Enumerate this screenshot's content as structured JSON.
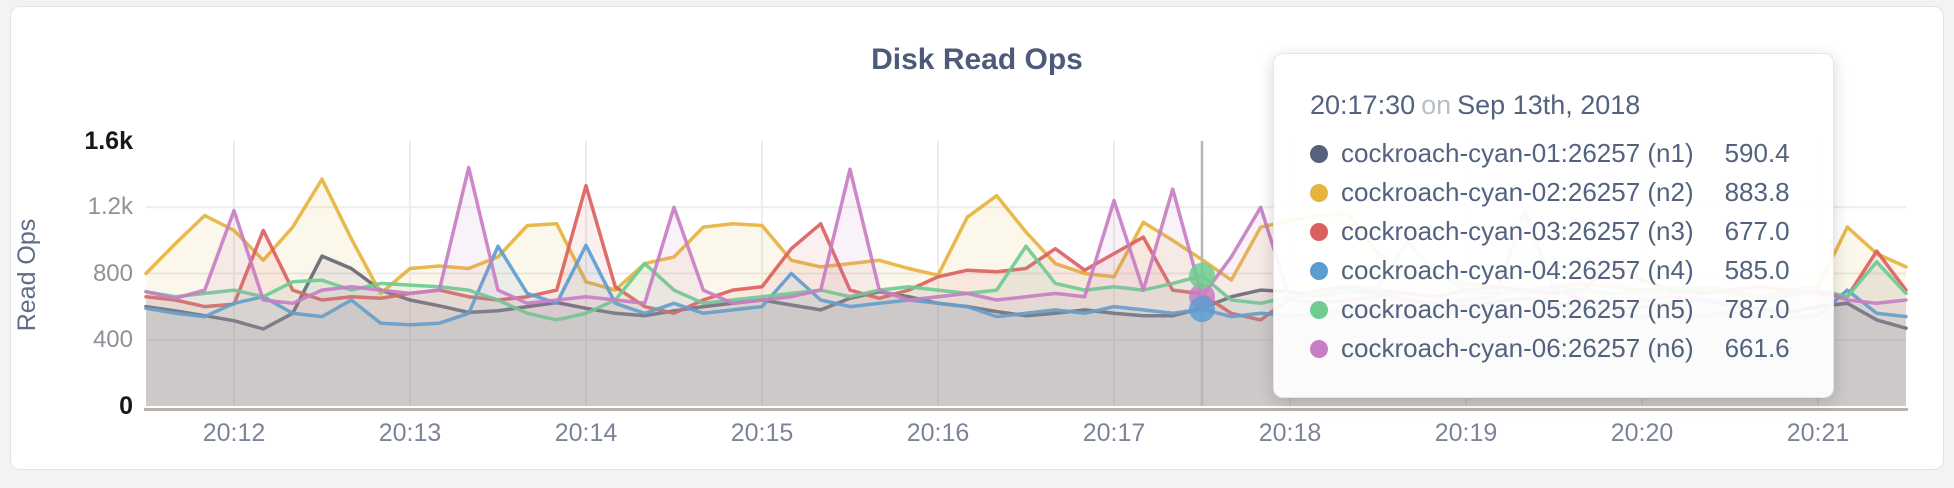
{
  "chart_data": {
    "type": "line",
    "title": "Disk Read Ops",
    "ylabel": "Read Ops",
    "xlabel": "",
    "ylim": [
      0,
      1600
    ],
    "x_start": "20:11:30",
    "x_interval_seconds": 10,
    "x_end": "20:21:30",
    "grid": true,
    "y_ticks": [
      {
        "value": 0,
        "label": "0",
        "emphasis": true
      },
      {
        "value": 400,
        "label": "400",
        "emphasis": false
      },
      {
        "value": 800,
        "label": "800",
        "emphasis": false
      },
      {
        "value": 1200,
        "label": "1.2k",
        "emphasis": false
      },
      {
        "value": 1600,
        "label": "1.6k",
        "emphasis": true
      }
    ],
    "x_ticks": [
      {
        "label": "20:12",
        "index": 3
      },
      {
        "label": "20:13",
        "index": 9
      },
      {
        "label": "20:14",
        "index": 15
      },
      {
        "label": "20:15",
        "index": 21
      },
      {
        "label": "20:16",
        "index": 27
      },
      {
        "label": "20:17",
        "index": 33
      },
      {
        "label": "20:18",
        "index": 39
      },
      {
        "label": "20:19",
        "index": 45
      },
      {
        "label": "20:20",
        "index": 51
      },
      {
        "label": "20:21",
        "index": 57
      }
    ],
    "hover": {
      "time": "20:17:30",
      "index": 36,
      "line_color": "#b4b8ba",
      "dots": [
        {
          "series": "n6",
          "value": 661.6
        },
        {
          "series": "n5",
          "value": 787.0
        },
        {
          "series": "n4",
          "value": 585.0
        }
      ]
    },
    "series": [
      {
        "key": "n1",
        "name": "cockroach-cyan-01:26257 (n1)",
        "color": "#57617b",
        "values": [
          600,
          575,
          545,
          515,
          465,
          560,
          905,
          830,
          700,
          640,
          605,
          565,
          575,
          600,
          625,
          590,
          560,
          545,
          575,
          600,
          620,
          640,
          610,
          580,
          650,
          690,
          660,
          620,
          600,
          570,
          545,
          560,
          580,
          560,
          545,
          545,
          590.4,
          660,
          700,
          690,
          665,
          700,
          680,
          640,
          620,
          600,
          630,
          650,
          620,
          600,
          585,
          600,
          620,
          640,
          610,
          585,
          565,
          600,
          620,
          520,
          470
        ]
      },
      {
        "key": "n2",
        "name": "cockroach-cyan-02:26257 (n2)",
        "color": "#e6b33e",
        "values": [
          800,
          980,
          1150,
          1060,
          880,
          1080,
          1370,
          1010,
          680,
          830,
          845,
          830,
          900,
          1090,
          1100,
          750,
          700,
          860,
          900,
          1080,
          1100,
          1090,
          880,
          840,
          860,
          880,
          830,
          790,
          1140,
          1270,
          1050,
          860,
          800,
          780,
          1110,
          1000,
          883.8,
          760,
          1080,
          1120,
          1150,
          1160,
          920,
          800,
          780,
          740,
          720,
          700,
          720,
          740,
          720,
          700,
          680,
          720,
          700,
          660,
          700,
          720,
          1080,
          920,
          840
        ]
      },
      {
        "key": "n3",
        "name": "cockroach-cyan-03:26257 (n3)",
        "color": "#dc615e",
        "values": [
          660,
          640,
          600,
          615,
          1060,
          700,
          640,
          660,
          650,
          680,
          700,
          660,
          640,
          660,
          700,
          1330,
          720,
          600,
          560,
          640,
          700,
          720,
          950,
          1100,
          700,
          650,
          700,
          780,
          820,
          810,
          830,
          950,
          820,
          920,
          1020,
          700,
          677,
          560,
          520,
          650,
          700,
          720,
          700,
          680,
          660,
          700,
          720,
          700,
          680,
          700,
          880,
          760,
          700,
          680,
          700,
          720,
          700,
          680,
          660,
          935,
          700
        ]
      },
      {
        "key": "n4",
        "name": "cockroach-cyan-04:26257 (n4)",
        "color": "#5c9dd1",
        "values": [
          590,
          560,
          540,
          620,
          660,
          560,
          540,
          640,
          500,
          490,
          500,
          560,
          965,
          680,
          620,
          970,
          620,
          560,
          620,
          560,
          580,
          600,
          800,
          640,
          600,
          620,
          640,
          620,
          600,
          540,
          560,
          580,
          560,
          600,
          580,
          560,
          585,
          540,
          560,
          545,
          560,
          580,
          560,
          540,
          560,
          580,
          560,
          540,
          560,
          580,
          560,
          540,
          530,
          545,
          560,
          540,
          530,
          545,
          700,
          560,
          540
        ]
      },
      {
        "key": "n5",
        "name": "cockroach-cyan-05:26257 (n5)",
        "color": "#6fcb90",
        "values": [
          690,
          660,
          680,
          700,
          660,
          750,
          760,
          700,
          740,
          730,
          720,
          700,
          640,
          560,
          520,
          560,
          640,
          860,
          700,
          620,
          640,
          660,
          680,
          700,
          660,
          700,
          720,
          700,
          680,
          700,
          965,
          740,
          700,
          720,
          700,
          740,
          787,
          640,
          620,
          660,
          680,
          700,
          720,
          990,
          800,
          700,
          680,
          700,
          720,
          700,
          680,
          700,
          720,
          700,
          680,
          660,
          680,
          700,
          660,
          870,
          680
        ]
      },
      {
        "key": "n6",
        "name": "cockroach-cyan-06:26257 (n6)",
        "color": "#c87ec4",
        "values": [
          690,
          650,
          700,
          1180,
          640,
          620,
          700,
          720,
          700,
          680,
          700,
          1440,
          700,
          620,
          640,
          660,
          640,
          620,
          1200,
          700,
          620,
          640,
          660,
          700,
          1430,
          700,
          640,
          660,
          680,
          640,
          660,
          680,
          660,
          1240,
          700,
          1310,
          661.6,
          900,
          1200,
          640,
          620,
          640,
          660,
          640,
          620,
          640,
          660,
          1180,
          700,
          640,
          620,
          640,
          660,
          640,
          620,
          640,
          660,
          700,
          640,
          620,
          640
        ]
      }
    ]
  },
  "tooltip": {
    "time": "20:17:30",
    "conjunction": "on",
    "date": "Sep 13th, 2018",
    "rows": [
      {
        "label": "cockroach-cyan-01:26257 (n1)",
        "value": "590.4"
      },
      {
        "label": "cockroach-cyan-02:26257 (n2)",
        "value": "883.8"
      },
      {
        "label": "cockroach-cyan-03:26257 (n3)",
        "value": "677.0"
      },
      {
        "label": "cockroach-cyan-04:26257 (n4)",
        "value": "585.0"
      },
      {
        "label": "cockroach-cyan-05:26257 (n5)",
        "value": "787.0"
      },
      {
        "label": "cockroach-cyan-06:26257 (n6)",
        "value": "661.6"
      }
    ]
  }
}
